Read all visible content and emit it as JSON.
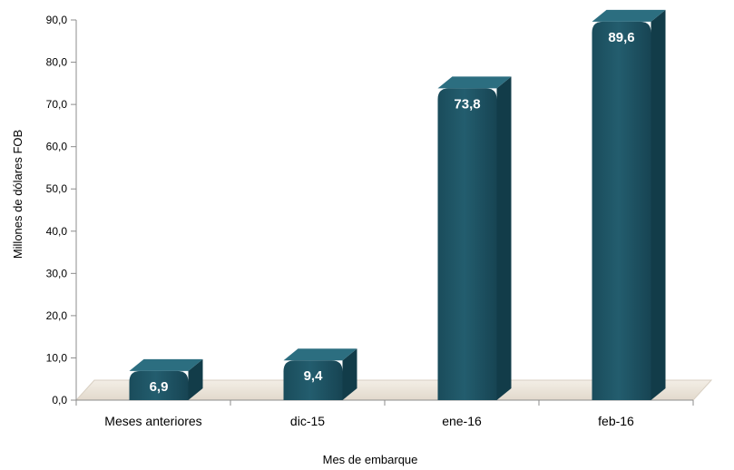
{
  "chart_data": {
    "type": "bar",
    "categories": [
      "Meses anteriores",
      "dic-15",
      "ene-16",
      "feb-16"
    ],
    "values": [
      6.9,
      9.4,
      73.8,
      89.6
    ],
    "data_labels": [
      "6,9",
      "9,4",
      "73,8",
      "89,6"
    ],
    "xlabel": "Mes de embarque",
    "ylabel": "Millones de dólares FOB",
    "ylim": [
      0,
      90
    ],
    "yticks": [
      0,
      10,
      20,
      30,
      40,
      50,
      60,
      70,
      80,
      90
    ],
    "ytick_labels": [
      "0,0",
      "10,0",
      "20,0",
      "30,0",
      "40,0",
      "50,0",
      "60,0",
      "70,0",
      "80,0",
      "90,0"
    ],
    "grid": false,
    "legend": "none",
    "style": "3d-cylinder",
    "colors": {
      "bar_front": "#1e5566",
      "bar_side": "#123c49",
      "bar_top": "#2c6e80",
      "floor": "#ede6db"
    }
  }
}
